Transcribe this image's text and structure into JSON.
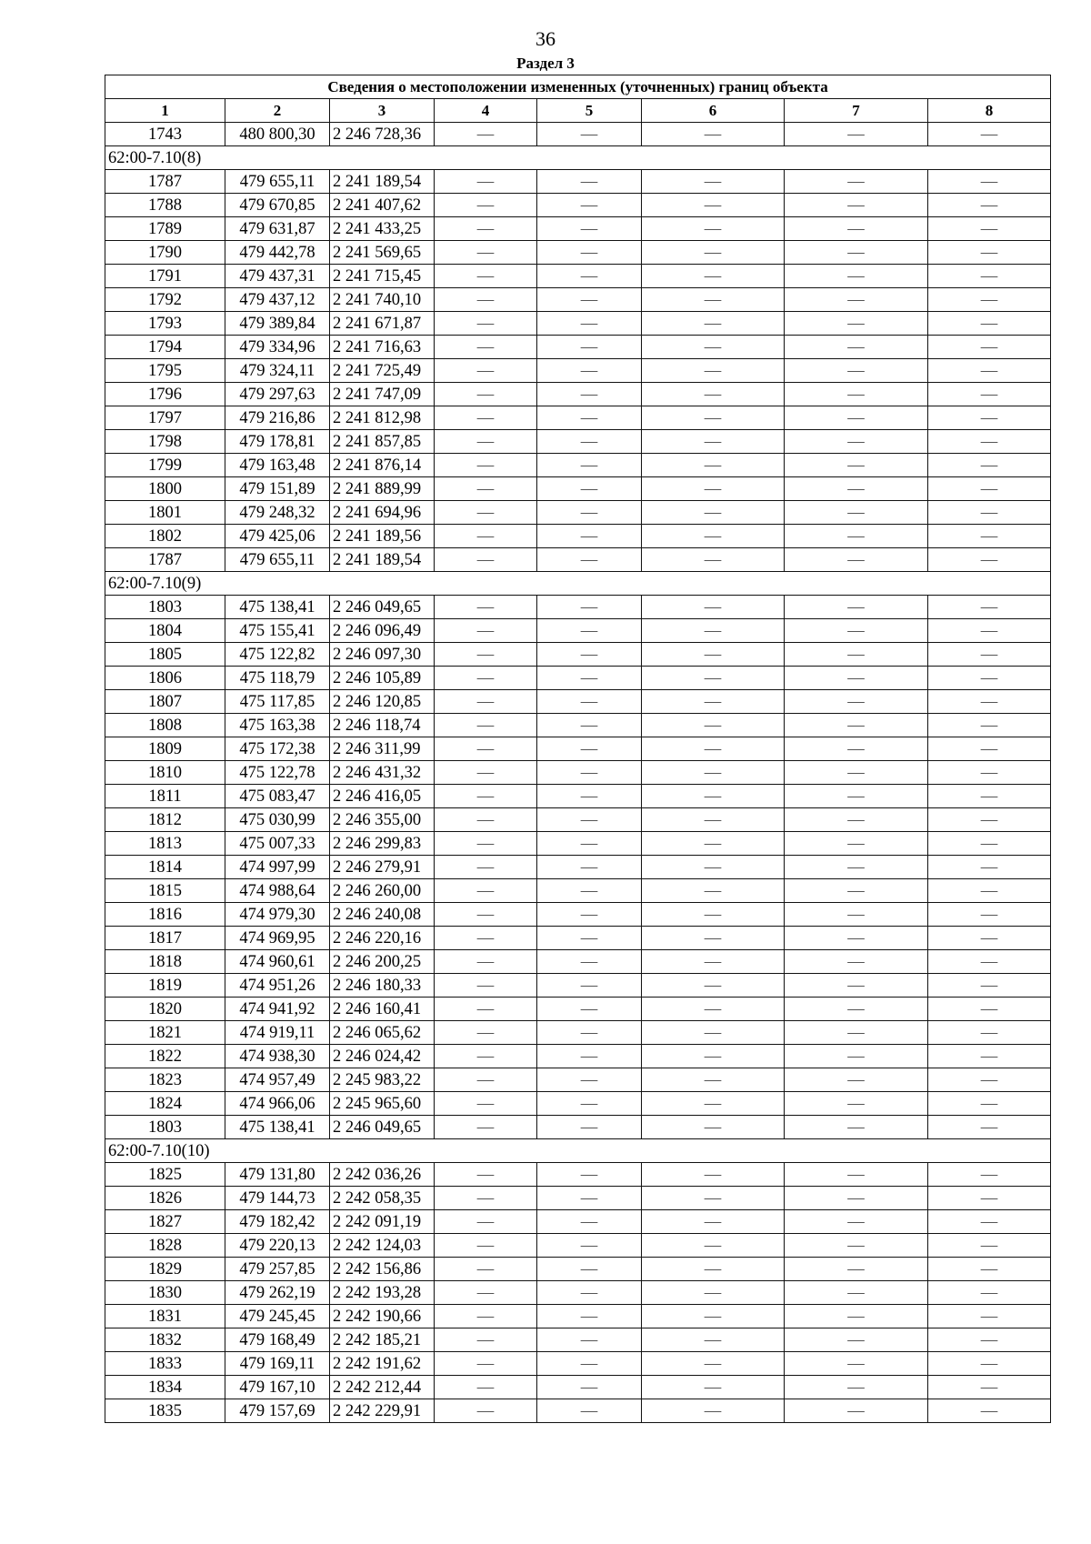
{
  "page_number": "36",
  "section_label": "Раздел 3",
  "table": {
    "title": "Сведения о местоположении измененных (уточненных) границ объекта",
    "columns": [
      "1",
      "2",
      "3",
      "4",
      "5",
      "6",
      "7",
      "8"
    ],
    "empty_mark": "—",
    "blocks": [
      {
        "group": "",
        "rows": [
          [
            "1743",
            "480 800,30",
            "2 246 728,36"
          ]
        ]
      },
      {
        "group": "62:00-7.10(8)",
        "rows": [
          [
            "1787",
            "479 655,11",
            "2 241 189,54"
          ],
          [
            "1788",
            "479 670,85",
            "2 241 407,62"
          ],
          [
            "1789",
            "479 631,87",
            "2 241 433,25"
          ],
          [
            "1790",
            "479 442,78",
            "2 241 569,65"
          ],
          [
            "1791",
            "479 437,31",
            "2 241 715,45"
          ],
          [
            "1792",
            "479 437,12",
            "2 241 740,10"
          ],
          [
            "1793",
            "479 389,84",
            "2 241 671,87"
          ],
          [
            "1794",
            "479 334,96",
            "2 241 716,63"
          ],
          [
            "1795",
            "479 324,11",
            "2 241 725,49"
          ],
          [
            "1796",
            "479 297,63",
            "2 241 747,09"
          ],
          [
            "1797",
            "479 216,86",
            "2 241 812,98"
          ],
          [
            "1798",
            "479 178,81",
            "2 241 857,85"
          ],
          [
            "1799",
            "479 163,48",
            "2 241 876,14"
          ],
          [
            "1800",
            "479 151,89",
            "2 241 889,99"
          ],
          [
            "1801",
            "479 248,32",
            "2 241 694,96"
          ],
          [
            "1802",
            "479 425,06",
            "2 241 189,56"
          ],
          [
            "1787",
            "479 655,11",
            "2 241 189,54"
          ]
        ]
      },
      {
        "group": "62:00-7.10(9)",
        "rows": [
          [
            "1803",
            "475 138,41",
            "2 246 049,65"
          ],
          [
            "1804",
            "475 155,41",
            "2 246 096,49"
          ],
          [
            "1805",
            "475 122,82",
            "2 246 097,30"
          ],
          [
            "1806",
            "475 118,79",
            "2 246 105,89"
          ],
          [
            "1807",
            "475 117,85",
            "2 246 120,85"
          ],
          [
            "1808",
            "475 163,38",
            "2 246 118,74"
          ],
          [
            "1809",
            "475 172,38",
            "2 246 311,99"
          ],
          [
            "1810",
            "475 122,78",
            "2 246 431,32"
          ],
          [
            "1811",
            "475 083,47",
            "2 246 416,05"
          ],
          [
            "1812",
            "475 030,99",
            "2 246 355,00"
          ],
          [
            "1813",
            "475 007,33",
            "2 246 299,83"
          ],
          [
            "1814",
            "474 997,99",
            "2 246 279,91"
          ],
          [
            "1815",
            "474 988,64",
            "2 246 260,00"
          ],
          [
            "1816",
            "474 979,30",
            "2 246 240,08"
          ],
          [
            "1817",
            "474 969,95",
            "2 246 220,16"
          ],
          [
            "1818",
            "474 960,61",
            "2 246 200,25"
          ],
          [
            "1819",
            "474 951,26",
            "2 246 180,33"
          ],
          [
            "1820",
            "474 941,92",
            "2 246 160,41"
          ],
          [
            "1821",
            "474 919,11",
            "2 246 065,62"
          ],
          [
            "1822",
            "474 938,30",
            "2 246 024,42"
          ],
          [
            "1823",
            "474 957,49",
            "2 245 983,22"
          ],
          [
            "1824",
            "474 966,06",
            "2 245 965,60"
          ],
          [
            "1803",
            "475 138,41",
            "2 246 049,65"
          ]
        ]
      },
      {
        "group": "62:00-7.10(10)",
        "rows": [
          [
            "1825",
            "479 131,80",
            "2 242 036,26"
          ],
          [
            "1826",
            "479 144,73",
            "2 242 058,35"
          ],
          [
            "1827",
            "479 182,42",
            "2 242 091,19"
          ],
          [
            "1828",
            "479 220,13",
            "2 242 124,03"
          ],
          [
            "1829",
            "479 257,85",
            "2 242 156,86"
          ],
          [
            "1830",
            "479 262,19",
            "2 242 193,28"
          ],
          [
            "1831",
            "479 245,45",
            "2 242 190,66"
          ],
          [
            "1832",
            "479 168,49",
            "2 242 185,21"
          ],
          [
            "1833",
            "479 169,11",
            "2 242 191,62"
          ],
          [
            "1834",
            "479 167,10",
            "2 242 212,44"
          ],
          [
            "1835",
            "479 157,69",
            "2 242 229,91"
          ]
        ]
      }
    ]
  }
}
